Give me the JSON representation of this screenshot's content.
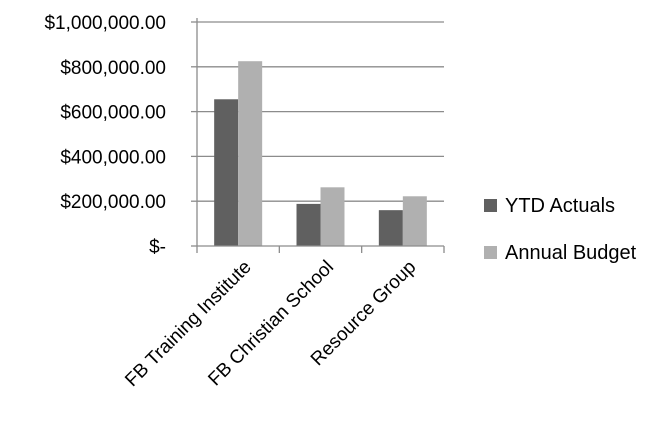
{
  "chart_data": {
    "type": "bar",
    "categories": [
      "FB Training Institute",
      "FB Christian School",
      "Resource Group"
    ],
    "series": [
      {
        "name": "YTD Actuals",
        "values": [
          655000,
          188000,
          160000
        ],
        "color": "#606060"
      },
      {
        "name": "Annual Budget",
        "values": [
          825000,
          262000,
          222000
        ],
        "color": "#b0b0b0"
      }
    ],
    "ylim": [
      0,
      1000000
    ],
    "yticks": [
      0,
      200000,
      400000,
      600000,
      800000,
      1000000
    ],
    "ytick_labels": [
      "$-",
      "$200,000.00",
      "$400,000.00",
      "$600,000.00",
      "$800,000.00",
      "$1,000,000.00"
    ],
    "gridlines": true,
    "legend_position": "right",
    "colors": {
      "gridline": "#8c8c8c",
      "axis": "#8c8c8c"
    }
  }
}
